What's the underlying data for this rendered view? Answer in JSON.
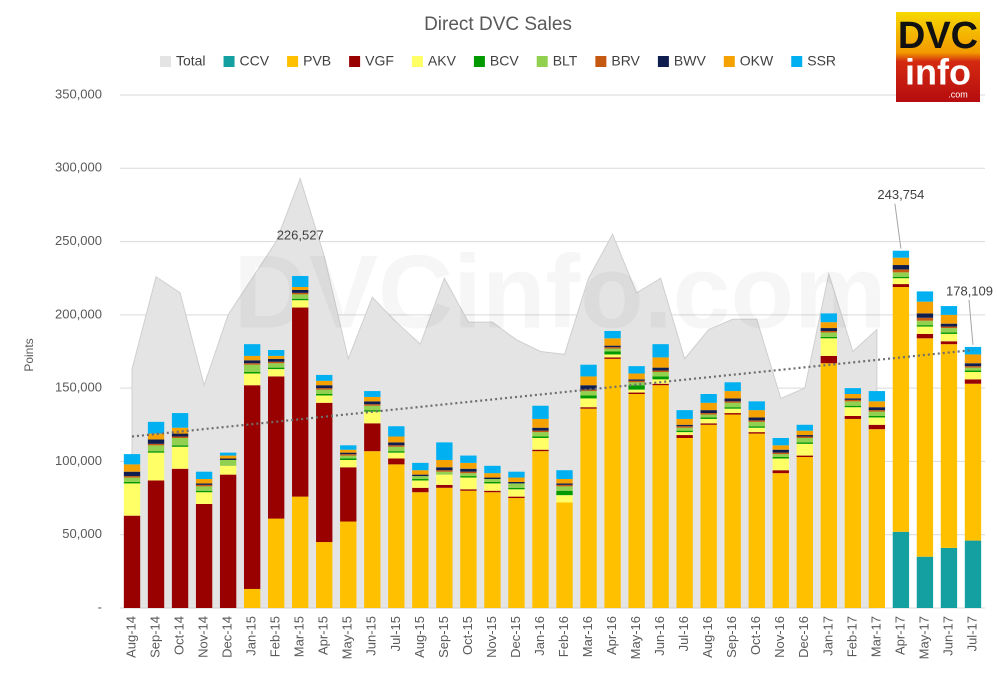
{
  "chart_data": {
    "type": "bar",
    "stacked": true,
    "title": "Direct DVC Sales",
    "y_label": "Points",
    "watermark": "DVCinfo.com",
    "logo": {
      "line1": "DVC",
      "line2": "info",
      "line3": ".com"
    },
    "categories": [
      "Aug-14",
      "Sep-14",
      "Oct-14",
      "Nov-14",
      "Dec-14",
      "Jan-15",
      "Feb-15",
      "Mar-15",
      "Apr-15",
      "May-15",
      "Jun-15",
      "Jul-15",
      "Aug-15",
      "Sep-15",
      "Oct-15",
      "Nov-15",
      "Dec-15",
      "Jan-16",
      "Feb-16",
      "Mar-16",
      "Apr-16",
      "May-16",
      "Jun-16",
      "Jul-16",
      "Aug-16",
      "Sep-16",
      "Oct-16",
      "Nov-16",
      "Dec-16",
      "Jan-17",
      "Feb-17",
      "Mar-17",
      "Apr-17",
      "May-17",
      "Jun-17",
      "Jul-17"
    ],
    "ylim": [
      0,
      350000
    ],
    "yticks": [
      {
        "value": 0,
        "label": "-"
      },
      {
        "value": 50000,
        "label": "50,000"
      },
      {
        "value": 100000,
        "label": "100,000"
      },
      {
        "value": 150000,
        "label": "150,000"
      },
      {
        "value": 200000,
        "label": "200,000"
      },
      {
        "value": 250000,
        "label": "250,000"
      },
      {
        "value": 300000,
        "label": "300,000"
      },
      {
        "value": 350000,
        "label": "350,000"
      }
    ],
    "grid": true,
    "legend": "top",
    "series": [
      {
        "name": "Total",
        "type": "area",
        "color": "#e4e4e4",
        "values": [
          163000,
          226000,
          215000,
          152000,
          200000,
          225000,
          250000,
          293000,
          240000,
          170000,
          212000,
          195000,
          180000,
          225000,
          195000,
          195000,
          183000,
          175000,
          173000,
          225000,
          255000,
          215000,
          225000,
          170000,
          190000,
          197000,
          197000,
          143000,
          150000,
          228000,
          175000,
          190000,
          null,
          null,
          null,
          null
        ]
      },
      {
        "name": "CCV",
        "color": "#14a0a0",
        "values": [
          0,
          0,
          0,
          0,
          0,
          0,
          0,
          0,
          0,
          0,
          0,
          0,
          0,
          0,
          0,
          0,
          0,
          0,
          0,
          0,
          0,
          0,
          0,
          0,
          0,
          0,
          0,
          0,
          0,
          0,
          0,
          0,
          52000,
          35000,
          41000,
          46000
        ]
      },
      {
        "name": "PVB",
        "color": "#ffc000",
        "values": [
          0,
          0,
          0,
          0,
          0,
          13000,
          61000,
          76000,
          45000,
          59000,
          107000,
          98000,
          79000,
          82000,
          80000,
          79000,
          75000,
          107000,
          72000,
          136000,
          170000,
          146000,
          152000,
          116000,
          125000,
          132000,
          119000,
          92000,
          103000,
          167000,
          129000,
          122000,
          167000,
          149000,
          139000,
          107000
        ]
      },
      {
        "name": "VGF",
        "color": "#990000",
        "values": [
          63000,
          87000,
          95000,
          71000,
          91000,
          139000,
          97000,
          129000,
          95000,
          37000,
          19000,
          4000,
          3000,
          2000,
          1000,
          1000,
          1000,
          1000,
          0,
          1000,
          1000,
          1000,
          1000,
          2000,
          1000,
          1000,
          1000,
          2000,
          1000,
          5000,
          2000,
          3000,
          2000,
          3000,
          2000,
          3000
        ]
      },
      {
        "name": "AKV",
        "color": "#ffff66",
        "values": [
          22000,
          19000,
          15000,
          8000,
          6000,
          8000,
          5000,
          5000,
          5000,
          5000,
          8000,
          4000,
          5000,
          7000,
          8000,
          5000,
          5000,
          8000,
          5000,
          6000,
          2000,
          2000,
          3000,
          2000,
          3000,
          3000,
          3000,
          8000,
          8000,
          12000,
          6000,
          5000,
          4000,
          5000,
          5000,
          5000
        ]
      },
      {
        "name": "BCV",
        "color": "#009a00",
        "values": [
          1000,
          1000,
          1000,
          1000,
          0,
          1000,
          1000,
          1000,
          1000,
          1000,
          1000,
          1000,
          1000,
          0,
          1000,
          1000,
          1000,
          1000,
          3000,
          2000,
          2000,
          3000,
          2000,
          1000,
          1000,
          1000,
          1000,
          1000,
          1000,
          1000,
          1000,
          1000,
          1000,
          1000,
          1000,
          1000
        ]
      },
      {
        "name": "BLT",
        "color": "#92d050",
        "values": [
          3000,
          4000,
          5000,
          3000,
          4000,
          5000,
          3000,
          3000,
          3000,
          2000,
          3000,
          3000,
          2000,
          2000,
          2000,
          2000,
          3000,
          3000,
          3000,
          3000,
          2000,
          2000,
          3000,
          2000,
          2000,
          3000,
          3000,
          2000,
          3000,
          3000,
          3000,
          3000,
          3000,
          3000,
          3000,
          2000
        ]
      },
      {
        "name": "BRV",
        "color": "#c65911",
        "values": [
          1000,
          1000,
          1000,
          1000,
          0,
          1000,
          1000,
          1000,
          1000,
          1000,
          1000,
          1000,
          0,
          1000,
          1000,
          0,
          0,
          1000,
          1000,
          1000,
          1000,
          1000,
          1000,
          1000,
          1000,
          1000,
          1000,
          1000,
          1000,
          1000,
          1000,
          1000,
          2000,
          2000,
          1000,
          1000
        ]
      },
      {
        "name": "BWV",
        "color": "#0f1e4f",
        "values": [
          3000,
          3000,
          2000,
          1000,
          1000,
          2000,
          2000,
          2000,
          2000,
          1000,
          2000,
          2000,
          1000,
          2000,
          2000,
          1000,
          1000,
          2000,
          1000,
          3000,
          1000,
          1000,
          2000,
          1000,
          2000,
          2000,
          2000,
          2000,
          1000,
          2000,
          1000,
          2000,
          3000,
          3000,
          2000,
          2000
        ]
      },
      {
        "name": "OKW",
        "color": "#f5a100",
        "values": [
          5000,
          4000,
          4000,
          3000,
          2000,
          3000,
          2000,
          2000,
          3000,
          2000,
          3000,
          4000,
          3000,
          5000,
          4000,
          3000,
          3000,
          6000,
          3000,
          6000,
          5000,
          4000,
          7000,
          4000,
          5000,
          5000,
          5000,
          3000,
          3000,
          4000,
          3000,
          4000,
          5000,
          8000,
          6000,
          6000
        ]
      },
      {
        "name": "SSR",
        "color": "#00b0f0",
        "values": [
          7000,
          8000,
          10000,
          5000,
          2000,
          8000,
          4000,
          7527,
          4000,
          3000,
          4000,
          7000,
          5000,
          12000,
          5000,
          5000,
          4000,
          9000,
          6000,
          8000,
          5000,
          5000,
          9000,
          6000,
          6000,
          6000,
          6000,
          5000,
          4000,
          6000,
          4000,
          7000,
          4754,
          7000,
          6000,
          5109
        ]
      }
    ],
    "trendline": {
      "color": "#6e6e6e",
      "values": [
        117000,
        176000
      ]
    },
    "annotations": [
      {
        "category": "Mar-15",
        "value": 226527,
        "label": "226,527"
      },
      {
        "category": "Apr-17",
        "value": 243754,
        "label": "243,754"
      },
      {
        "category": "Jul-17",
        "value": 178109,
        "label": "178,109"
      }
    ]
  }
}
